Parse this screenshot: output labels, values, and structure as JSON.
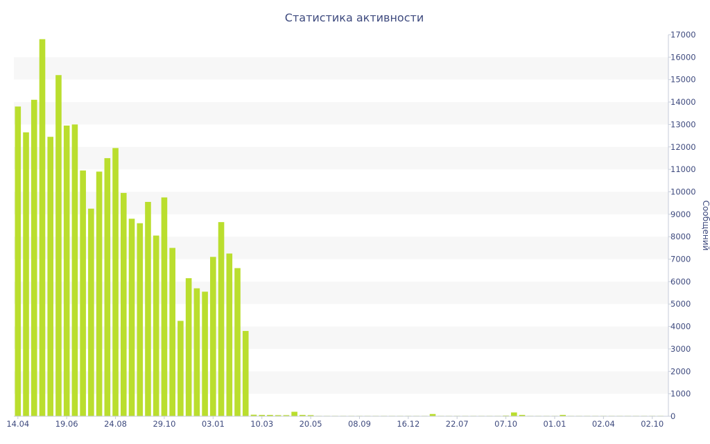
{
  "chart_data": {
    "type": "bar",
    "title": "Статистика активности",
    "xlabel": "",
    "ylabel": "Сообщений",
    "ylim": [
      0,
      17000
    ],
    "yticks": [
      0,
      1000,
      2000,
      3000,
      4000,
      5000,
      6000,
      7000,
      8000,
      9000,
      10000,
      11000,
      12000,
      13000,
      14000,
      15000,
      16000,
      17000
    ],
    "xtick_labels": [
      {
        "label": "14.04",
        "index": 0
      },
      {
        "label": "19.06",
        "index": 6
      },
      {
        "label": "24.08",
        "index": 12
      },
      {
        "label": "29.10",
        "index": 18
      },
      {
        "label": "03.01",
        "index": 24
      },
      {
        "label": "10.03",
        "index": 30
      },
      {
        "label": "20.05",
        "index": 36
      },
      {
        "label": "08.09",
        "index": 42
      },
      {
        "label": "16.12",
        "index": 48
      },
      {
        "label": "22.07",
        "index": 54
      },
      {
        "label": "07.10",
        "index": 60
      },
      {
        "label": "01.01",
        "index": 66
      },
      {
        "label": "02.04",
        "index": 72
      },
      {
        "label": "02.10",
        "index": 78
      }
    ],
    "grid": "alternating horizontal bands",
    "y_axis_position": "right",
    "legend": "none",
    "bar_color": "#bade2e",
    "values": [
      13800,
      12650,
      14100,
      16800,
      12450,
      15200,
      12950,
      13000,
      10950,
      9250,
      10900,
      11500,
      11950,
      9950,
      8800,
      8600,
      9550,
      8050,
      9750,
      7500,
      4250,
      6150,
      5700,
      5550,
      7100,
      8650,
      7250,
      6600,
      3800,
      70,
      60,
      60,
      50,
      50,
      200,
      60,
      50,
      20,
      20,
      20,
      20,
      20,
      20,
      20,
      20,
      20,
      20,
      20,
      20,
      20,
      20,
      100,
      20,
      20,
      20,
      20,
      20,
      20,
      20,
      20,
      30,
      170,
      60,
      20,
      20,
      20,
      20,
      60,
      20,
      20,
      20,
      20,
      20,
      20,
      20,
      20,
      20,
      20,
      20,
      20
    ]
  }
}
